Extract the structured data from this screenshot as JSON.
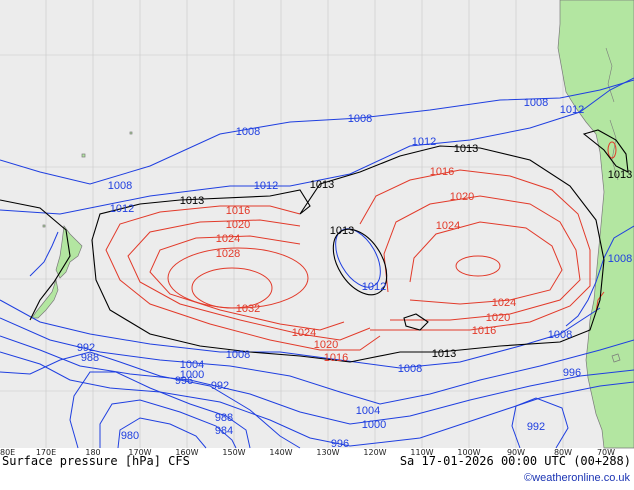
{
  "colors": {
    "ocean": "#ececec",
    "land": "#b3e6a1",
    "coast": "#7a7a7a",
    "low_isobar": "#1f3fe0",
    "high_isobar": "#e23a2a",
    "reference_isobar": "#000000",
    "credit": "#1a33b3"
  },
  "footer": {
    "caption": "Surface pressure [hPa] CFS",
    "datetime": "Sa 17-01-2026 00:00 UTC (00+288)",
    "credit": "©weatheronline.co.uk"
  },
  "longitude_labels": [
    "80E",
    "170E",
    "180",
    "170W",
    "160W",
    "150W",
    "140W",
    "130W",
    "120W",
    "110W",
    "100W",
    "90W",
    "80W",
    "70W"
  ],
  "isobar_labels": {
    "l1008a": "1008",
    "l1008b": "1008",
    "l1008c": "1008",
    "l1008d": "1008",
    "l1008e": "1008",
    "l1008f": "1008",
    "l1008g": "1008",
    "l1008h": "1008",
    "l1012a": "1012",
    "l1012b": "1012",
    "l1012c": "1012",
    "l1012d": "1012",
    "l1012e": "1012",
    "l1013a": "1013",
    "l1013b": "1013",
    "l1013c": "1013",
    "l1013d": "1013",
    "l1013e": "1013",
    "l1016a": "1016",
    "l1016b": "1016",
    "l1016c": "1016",
    "l1016d": "1016",
    "l1020a": "1020",
    "l1020b": "1020",
    "l1020c": "1020",
    "l1020d": "1020",
    "l1024a": "1024",
    "l1024b": "1024",
    "l1024c": "1024",
    "l1024d": "1024",
    "l1028a": "1028",
    "l1032a": "1032",
    "l1004a": "1004",
    "l1004b": "1004",
    "l1000a": "1000",
    "l1000b": "1000",
    "l996a": "996",
    "l996b": "996",
    "l996c": "996",
    "l992a": "992",
    "l992b": "992",
    "l992c": "992",
    "l988a": "988",
    "l988b": "988",
    "l984a": "984",
    "l980a": "980"
  }
}
